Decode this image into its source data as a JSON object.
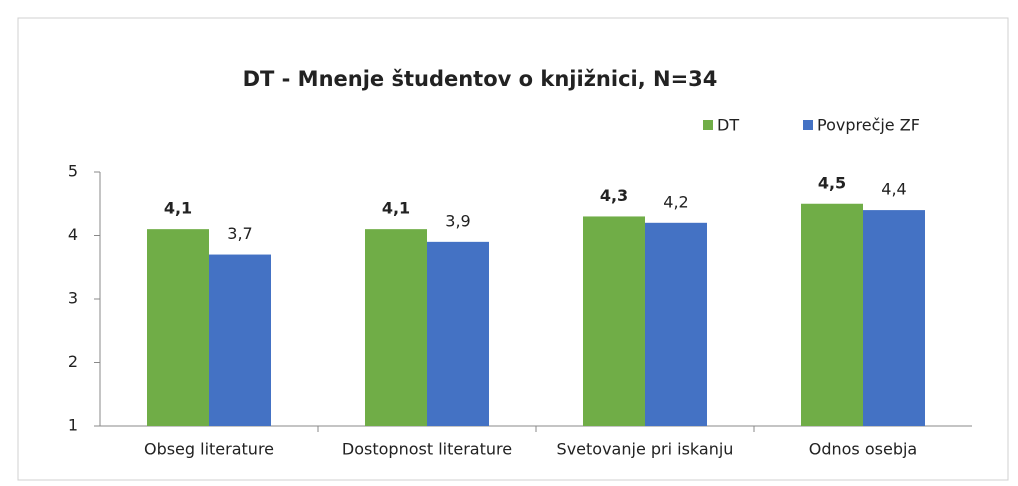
{
  "chart_data": {
    "type": "bar",
    "title": "DT - Mnenje študentov o knjižnici, N=34",
    "categories": [
      "Obseg literature",
      "Dostopnost literature",
      "Svetovanje pri iskanju",
      "Odnos osebja"
    ],
    "series": [
      {
        "name": "DT",
        "color": "#70ad47",
        "values": [
          4.1,
          4.1,
          4.3,
          4.5
        ],
        "value_labels": [
          "4,1",
          "4,1",
          "4,3",
          "4,5"
        ]
      },
      {
        "name": "Povprečje ZF",
        "color": "#4472c4",
        "values": [
          3.7,
          3.9,
          4.2,
          4.4
        ],
        "value_labels": [
          "3,7",
          "3,9",
          "4,2",
          "4,4"
        ]
      }
    ],
    "ylim": [
      1,
      5
    ],
    "yticks": [
      1,
      2,
      3,
      4,
      5
    ],
    "grid": false,
    "legend": "top-right"
  }
}
